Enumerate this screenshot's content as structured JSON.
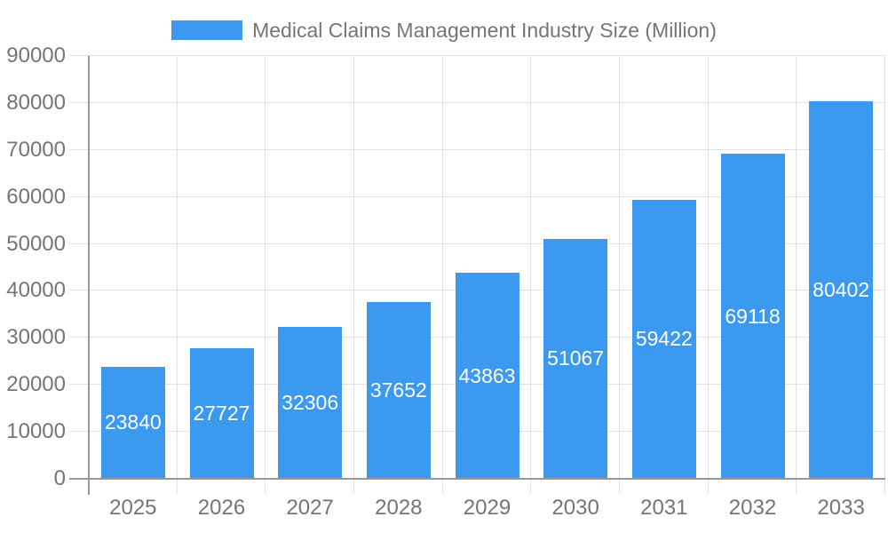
{
  "chart_data": {
    "type": "bar",
    "title": "Medical Claims Management Industry Size (Million)",
    "categories": [
      "2025",
      "2026",
      "2027",
      "2028",
      "2029",
      "2030",
      "2031",
      "2032",
      "2033"
    ],
    "values": [
      23840,
      27727,
      32306,
      37652,
      43863,
      51067,
      59422,
      69118,
      80402
    ],
    "series": [
      {
        "name": "Medical Claims Management Industry Size (Million)",
        "values": [
          23840,
          27727,
          32306,
          37652,
          43863,
          51067,
          59422,
          69118,
          80402
        ]
      }
    ],
    "xlabel": "",
    "ylabel": "",
    "ylim": [
      0,
      90000
    ],
    "yticks": [
      0,
      10000,
      20000,
      30000,
      40000,
      50000,
      60000,
      70000,
      80000,
      90000
    ],
    "grid": true,
    "legend_position": "top",
    "colors": {
      "bar": "#3b99f0",
      "value_label": "#ffffff",
      "axis_text": "#757575",
      "grid_line": "#e2e2e2",
      "axis_line": "#999999"
    }
  }
}
